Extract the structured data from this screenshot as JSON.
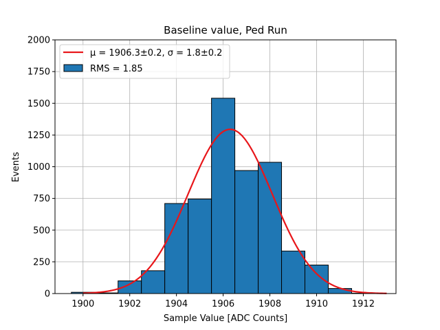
{
  "chart_data": {
    "type": "bar",
    "title": "Baseline value, Ped Run",
    "xlabel": "Sample Value [ADC Counts]",
    "ylabel": "Events",
    "xlim": [
      1898.8,
      1913.4
    ],
    "ylim": [
      0,
      2000
    ],
    "xticks": [
      1900,
      1902,
      1904,
      1906,
      1908,
      1910,
      1912
    ],
    "yticks": [
      0,
      250,
      500,
      750,
      1000,
      1250,
      1500,
      1750,
      2000
    ],
    "grid": true,
    "legend_position": "top-left",
    "histogram": {
      "name": "RMS = 1.85",
      "color": "#1f77b4",
      "edgecolor": "#000000",
      "bins": [
        {
          "x0": 1899.5,
          "x1": 1900.5,
          "count": 10
        },
        {
          "x0": 1900.5,
          "x1": 1901.5,
          "count": 5
        },
        {
          "x0": 1901.5,
          "x1": 1902.5,
          "count": 100
        },
        {
          "x0": 1902.5,
          "x1": 1903.5,
          "count": 180
        },
        {
          "x0": 1903.5,
          "x1": 1904.5,
          "count": 710
        },
        {
          "x0": 1904.5,
          "x1": 1905.5,
          "count": 745
        },
        {
          "x0": 1905.5,
          "x1": 1906.5,
          "count": 1540
        },
        {
          "x0": 1906.5,
          "x1": 1907.5,
          "count": 970
        },
        {
          "x0": 1907.5,
          "x1": 1908.5,
          "count": 1035
        },
        {
          "x0": 1908.5,
          "x1": 1909.5,
          "count": 335
        },
        {
          "x0": 1909.5,
          "x1": 1910.5,
          "count": 225
        },
        {
          "x0": 1910.5,
          "x1": 1911.5,
          "count": 40
        },
        {
          "x0": 1911.5,
          "x1": 1912.5,
          "count": 3
        }
      ]
    },
    "fit": {
      "name": "μ = 1906.3±0.2, σ = 1.8±0.2",
      "color": "#e8161a",
      "amplitude": 1295,
      "mu": 1906.3,
      "sigma": 1.8,
      "x_range": [
        1900,
        1913
      ]
    }
  }
}
